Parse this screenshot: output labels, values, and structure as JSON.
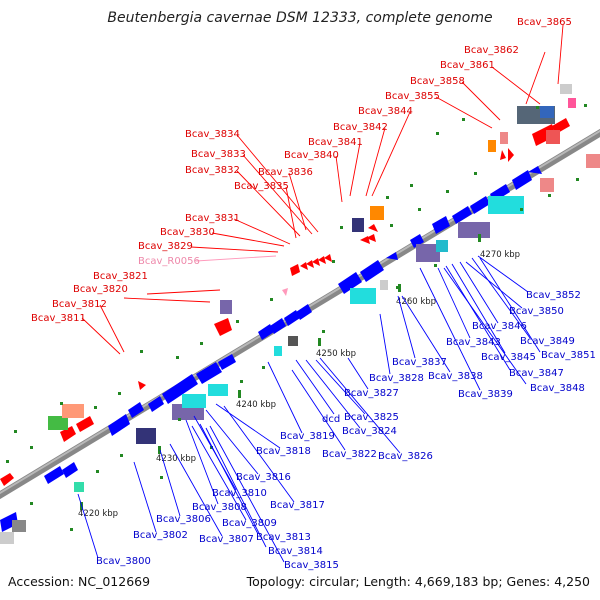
{
  "title": "Beutenbergia cavernae DSM 12333, complete genome",
  "footer": {
    "accession": "Accession: NC_012669",
    "summary": "Topology: circular; Length: 4,669,183 bp; Genes: 4,250"
  },
  "colors": {
    "upper_strand_gene": "#ff0000",
    "lower_strand_gene": "#0000ff",
    "rna_gene": "#ff99bb",
    "backbone": "#888888",
    "tick": "#228822"
  },
  "kbp_ticks": [
    "4220 kbp",
    "4230 kbp",
    "4240 kbp",
    "4250 kbp",
    "4260 kbp",
    "4270 kbp"
  ],
  "upper_labels": [
    "Bcav_3865",
    "Bcav_3862",
    "Bcav_3861",
    "Bcav_3858",
    "Bcav_3855",
    "Bcav_3844",
    "Bcav_3842",
    "Bcav_3841",
    "Bcav_3840",
    "Bcav_3834",
    "Bcav_3833",
    "Bcav_3836",
    "Bcav_3832",
    "Bcav_3835",
    "Bcav_3831",
    "Bcav_3830",
    "Bcav_3829",
    "Bcav_R0056",
    "Bcav_3821",
    "Bcav_3820",
    "Bcav_3812",
    "Bcav_3811"
  ],
  "lower_labels": [
    "Bcav_3852",
    "Bcav_3850",
    "Bcav_3846",
    "Bcav_3849",
    "Bcav_3843",
    "Bcav_3845",
    "Bcav_3851",
    "Bcav_3847",
    "Bcav_3848",
    "Bcav_3837",
    "Bcav_3838",
    "Bcav_3828",
    "Bcav_3839",
    "Bcav_3827",
    "dcd",
    "Bcav_3825",
    "Bcav_3824",
    "Bcav_3819",
    "Bcav_3822",
    "Bcav_3826",
    "Bcav_3818",
    "Bcav_3816",
    "Bcav_3810",
    "Bcav_3817",
    "Bcav_3808",
    "Bcav_3806",
    "Bcav_3809",
    "Bcav_3813",
    "Bcav_3802",
    "Bcav_3807",
    "Bcav_3814",
    "Bcav_3815",
    "Bcav_3800"
  ]
}
